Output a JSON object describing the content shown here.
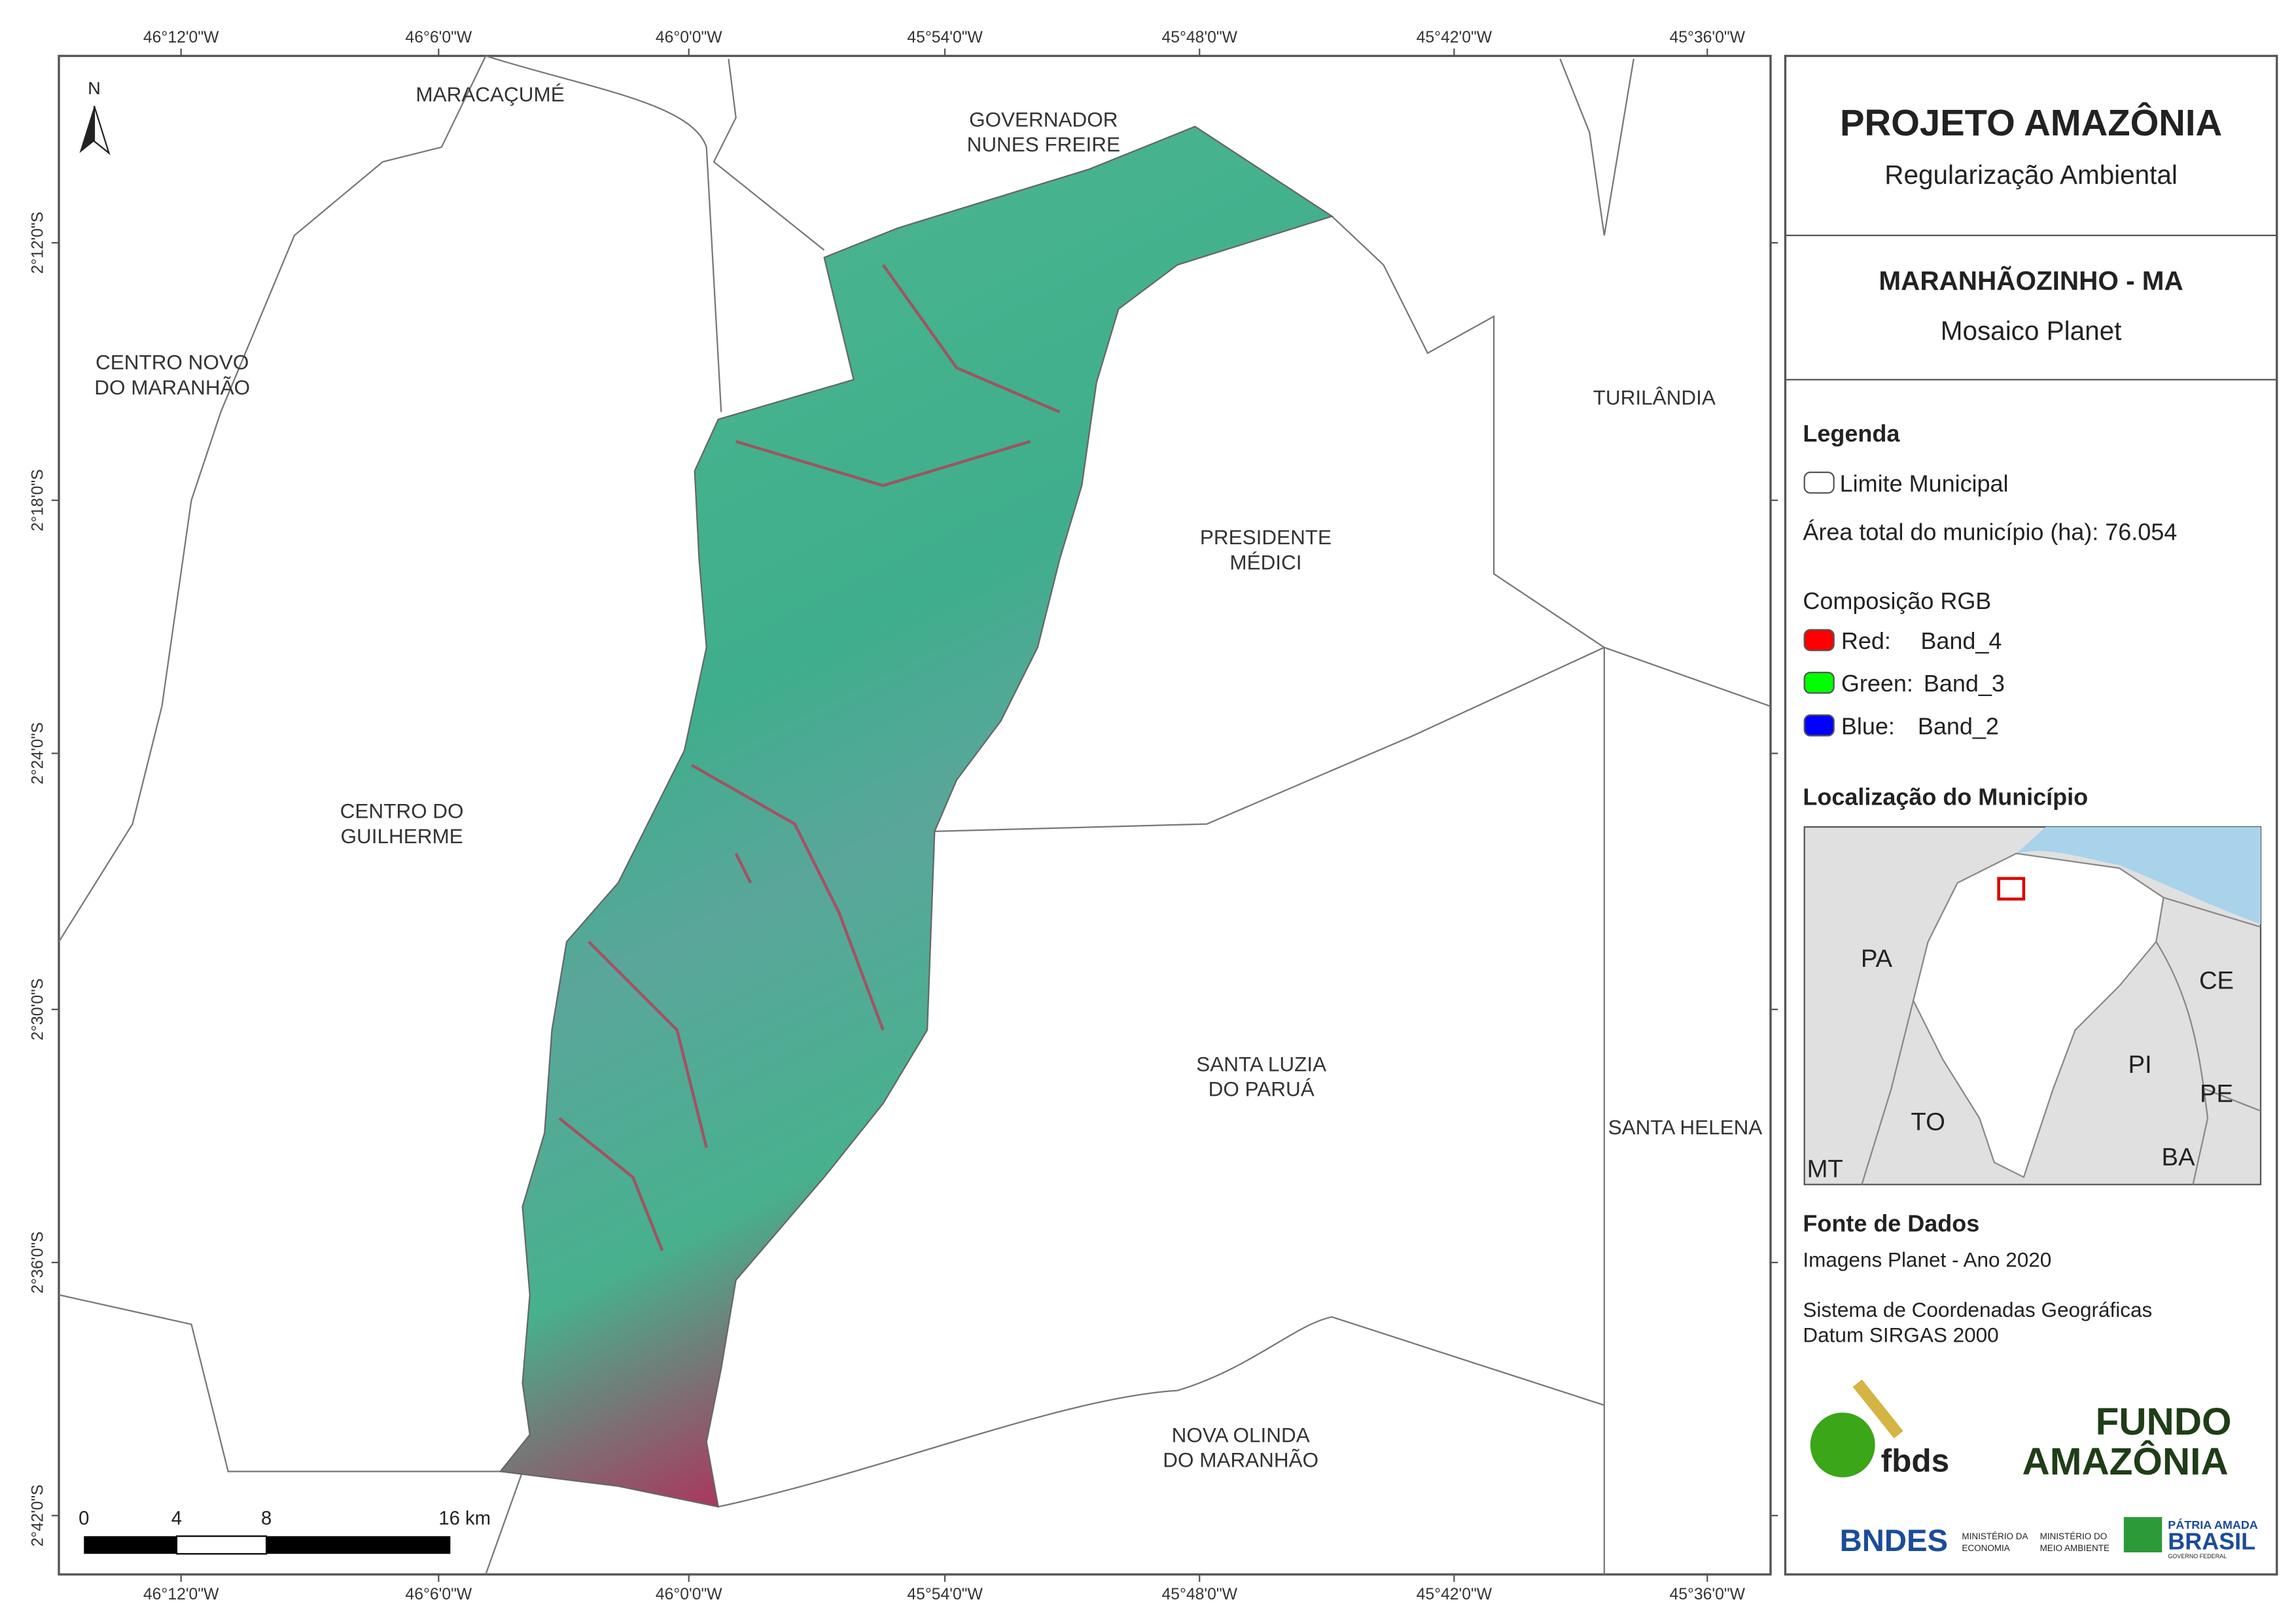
{
  "map": {
    "north": "N",
    "lon_labels": [
      "46°12'0\"W",
      "46°6'0\"W",
      "46°0'0\"W",
      "45°54'0\"W",
      "45°48'0\"W",
      "45°42'0\"W",
      "45°36'0\"W"
    ],
    "lat_labels": [
      "2°12'0\"S",
      "2°18'0\"S",
      "2°24'0\"S",
      "2°30'0\"S",
      "2°36'0\"S",
      "2°42'0\"S"
    ],
    "municipalities": [
      {
        "lines": [
          "MARACAÇUMÉ"
        ]
      },
      {
        "lines": [
          "GOVERNADOR",
          "NUNES FREIRE"
        ]
      },
      {
        "lines": [
          "CENTRO NOVO",
          "DO MARANHÃO"
        ]
      },
      {
        "lines": [
          "TURILÂNDIA"
        ]
      },
      {
        "lines": [
          "PRESIDENTE",
          "MÉDICI"
        ]
      },
      {
        "lines": [
          "CENTRO DO",
          "GUILHERME"
        ]
      },
      {
        "lines": [
          "SANTA LUZIA",
          "DO PARUÁ"
        ]
      },
      {
        "lines": [
          "SANTA HELENA"
        ]
      },
      {
        "lines": [
          "NOVA OLINDA",
          "DO MARANHÃO"
        ]
      }
    ],
    "scale_labels": [
      "0",
      "4",
      "8",
      "16 km"
    ]
  },
  "header": {
    "title": "PROJETO AMAZÔNIA",
    "subtitle": "Regularização Ambiental"
  },
  "area": {
    "name": "MARANHÃOZINHO - MA",
    "product": "Mosaico Planet"
  },
  "legend": {
    "heading": "Legenda",
    "limit": "Limite Municipal",
    "area": "Área total do município (ha): 76.054",
    "rgb_heading": "Composição RGB",
    "bands": [
      {
        "channel": "Red:",
        "band": "Band_4"
      },
      {
        "channel": "Green:",
        "band": "Band_3"
      },
      {
        "channel": "Blue:",
        "band": "Band_2"
      }
    ]
  },
  "location": {
    "heading": "Localização do Município",
    "states": [
      "PA",
      "CE",
      "PI",
      "PE",
      "TO",
      "BA",
      "MT"
    ]
  },
  "source": {
    "heading": "Fonte de Dados",
    "lines": [
      "Imagens Planet - Ano 2020",
      "Sistema de Coordenadas Geográficas",
      "Datum SIRGAS 2000"
    ]
  },
  "logos": {
    "fbds": "fbds",
    "fundo": [
      "FUNDO",
      "AMAZÔNIA"
    ],
    "bndes": "BNDES",
    "min1": [
      "MINISTÉRIO DA",
      "ECONOMIA"
    ],
    "min2": [
      "MINISTÉRIO DO",
      "MEIO AMBIENTE"
    ],
    "patria": [
      "PÁTRIA AMADA",
      "BRASIL",
      "GOVERNO FEDERAL"
    ]
  }
}
